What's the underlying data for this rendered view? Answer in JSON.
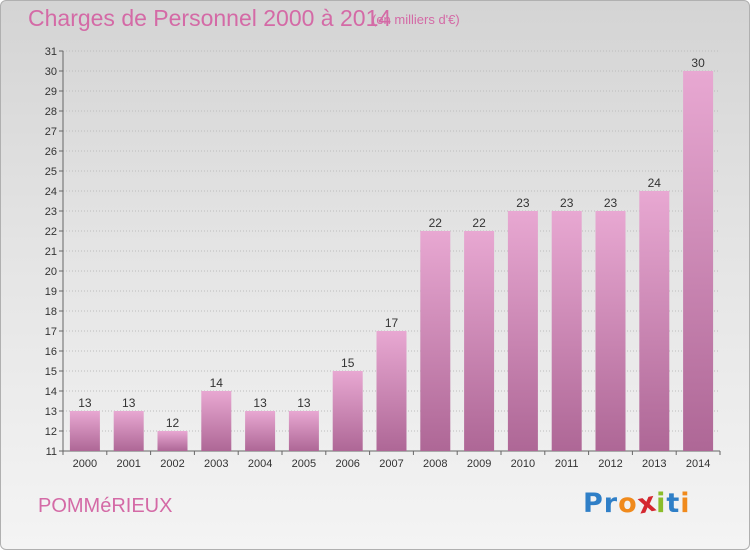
{
  "header": {
    "title": "Charges de Personnel 2000 à 2014",
    "subtitle": "(en milliers d'€)"
  },
  "footer": {
    "commune": "POMMéRIEUX",
    "logo_letters": [
      "P",
      "r",
      "o",
      "x",
      "i",
      "t",
      "i"
    ],
    "logo_colors": [
      "#2f7fc7",
      "#2f7fc7",
      "#f08a1c",
      "#d4272f",
      "#8bbd2a",
      "#2f7fc7",
      "#f08a1c"
    ]
  },
  "colors": {
    "bar_light": "#e8a8d2",
    "bar_dark": "#ae6796",
    "text_accent": "#d46aa6"
  },
  "chart_data": {
    "type": "bar",
    "categories": [
      "2000",
      "2001",
      "2002",
      "2003",
      "2004",
      "2005",
      "2006",
      "2007",
      "2008",
      "2009",
      "2010",
      "2011",
      "2012",
      "2013",
      "2014"
    ],
    "values": [
      13,
      13,
      12,
      14,
      13,
      13,
      15,
      17,
      22,
      22,
      23,
      23,
      23,
      24,
      30
    ],
    "title": "Charges de Personnel 2000 à 2014",
    "subtitle": "(en milliers d'€)",
    "xlabel": "",
    "ylabel": "",
    "ylim": [
      11,
      31
    ],
    "yticks": [
      11,
      12,
      13,
      14,
      15,
      16,
      17,
      18,
      19,
      20,
      21,
      22,
      23,
      24,
      25,
      26,
      27,
      28,
      29,
      30,
      31
    ],
    "grid": true,
    "legend": "none"
  }
}
